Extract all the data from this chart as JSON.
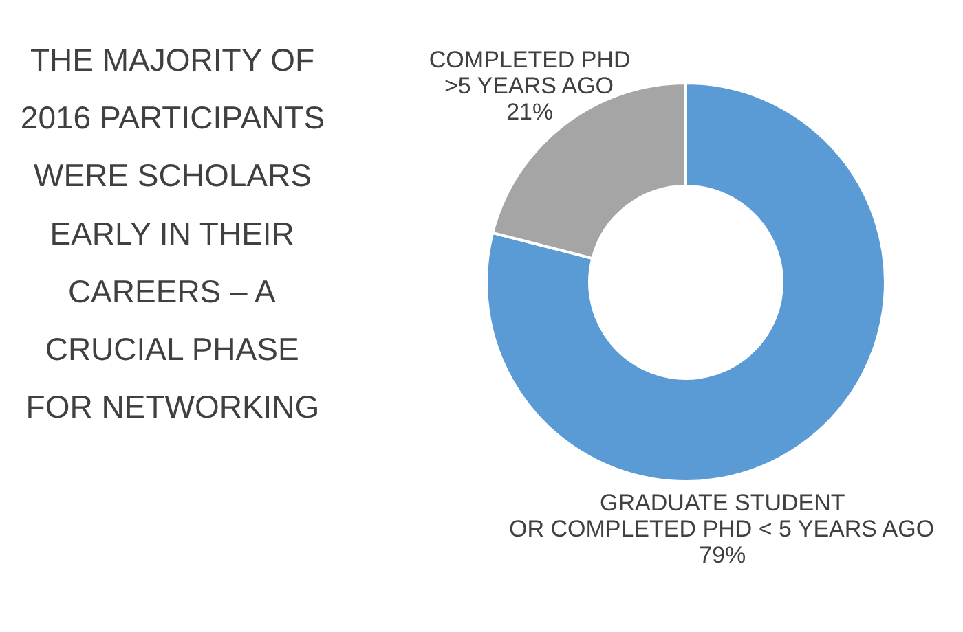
{
  "chart_data": {
    "type": "donut",
    "title": "THE MAJORITY OF\n2016 PARTICIPANTS\nWERE SCHOLARS\nEARLY IN THEIR\nCAREERS – A\nCRUCIAL PHASE\nFOR NETWORKING",
    "categories": [
      "GRADUATE STUDENT\nOR COMPLETED PHD < 5 YEARS AGO",
      "COMPLETED PHD\n>5 YEARS AGO"
    ],
    "values": [
      79,
      21
    ],
    "colors": [
      "#5b9bd5",
      "#a5a5a5"
    ],
    "value_labels": [
      "79%",
      "21%"
    ]
  }
}
